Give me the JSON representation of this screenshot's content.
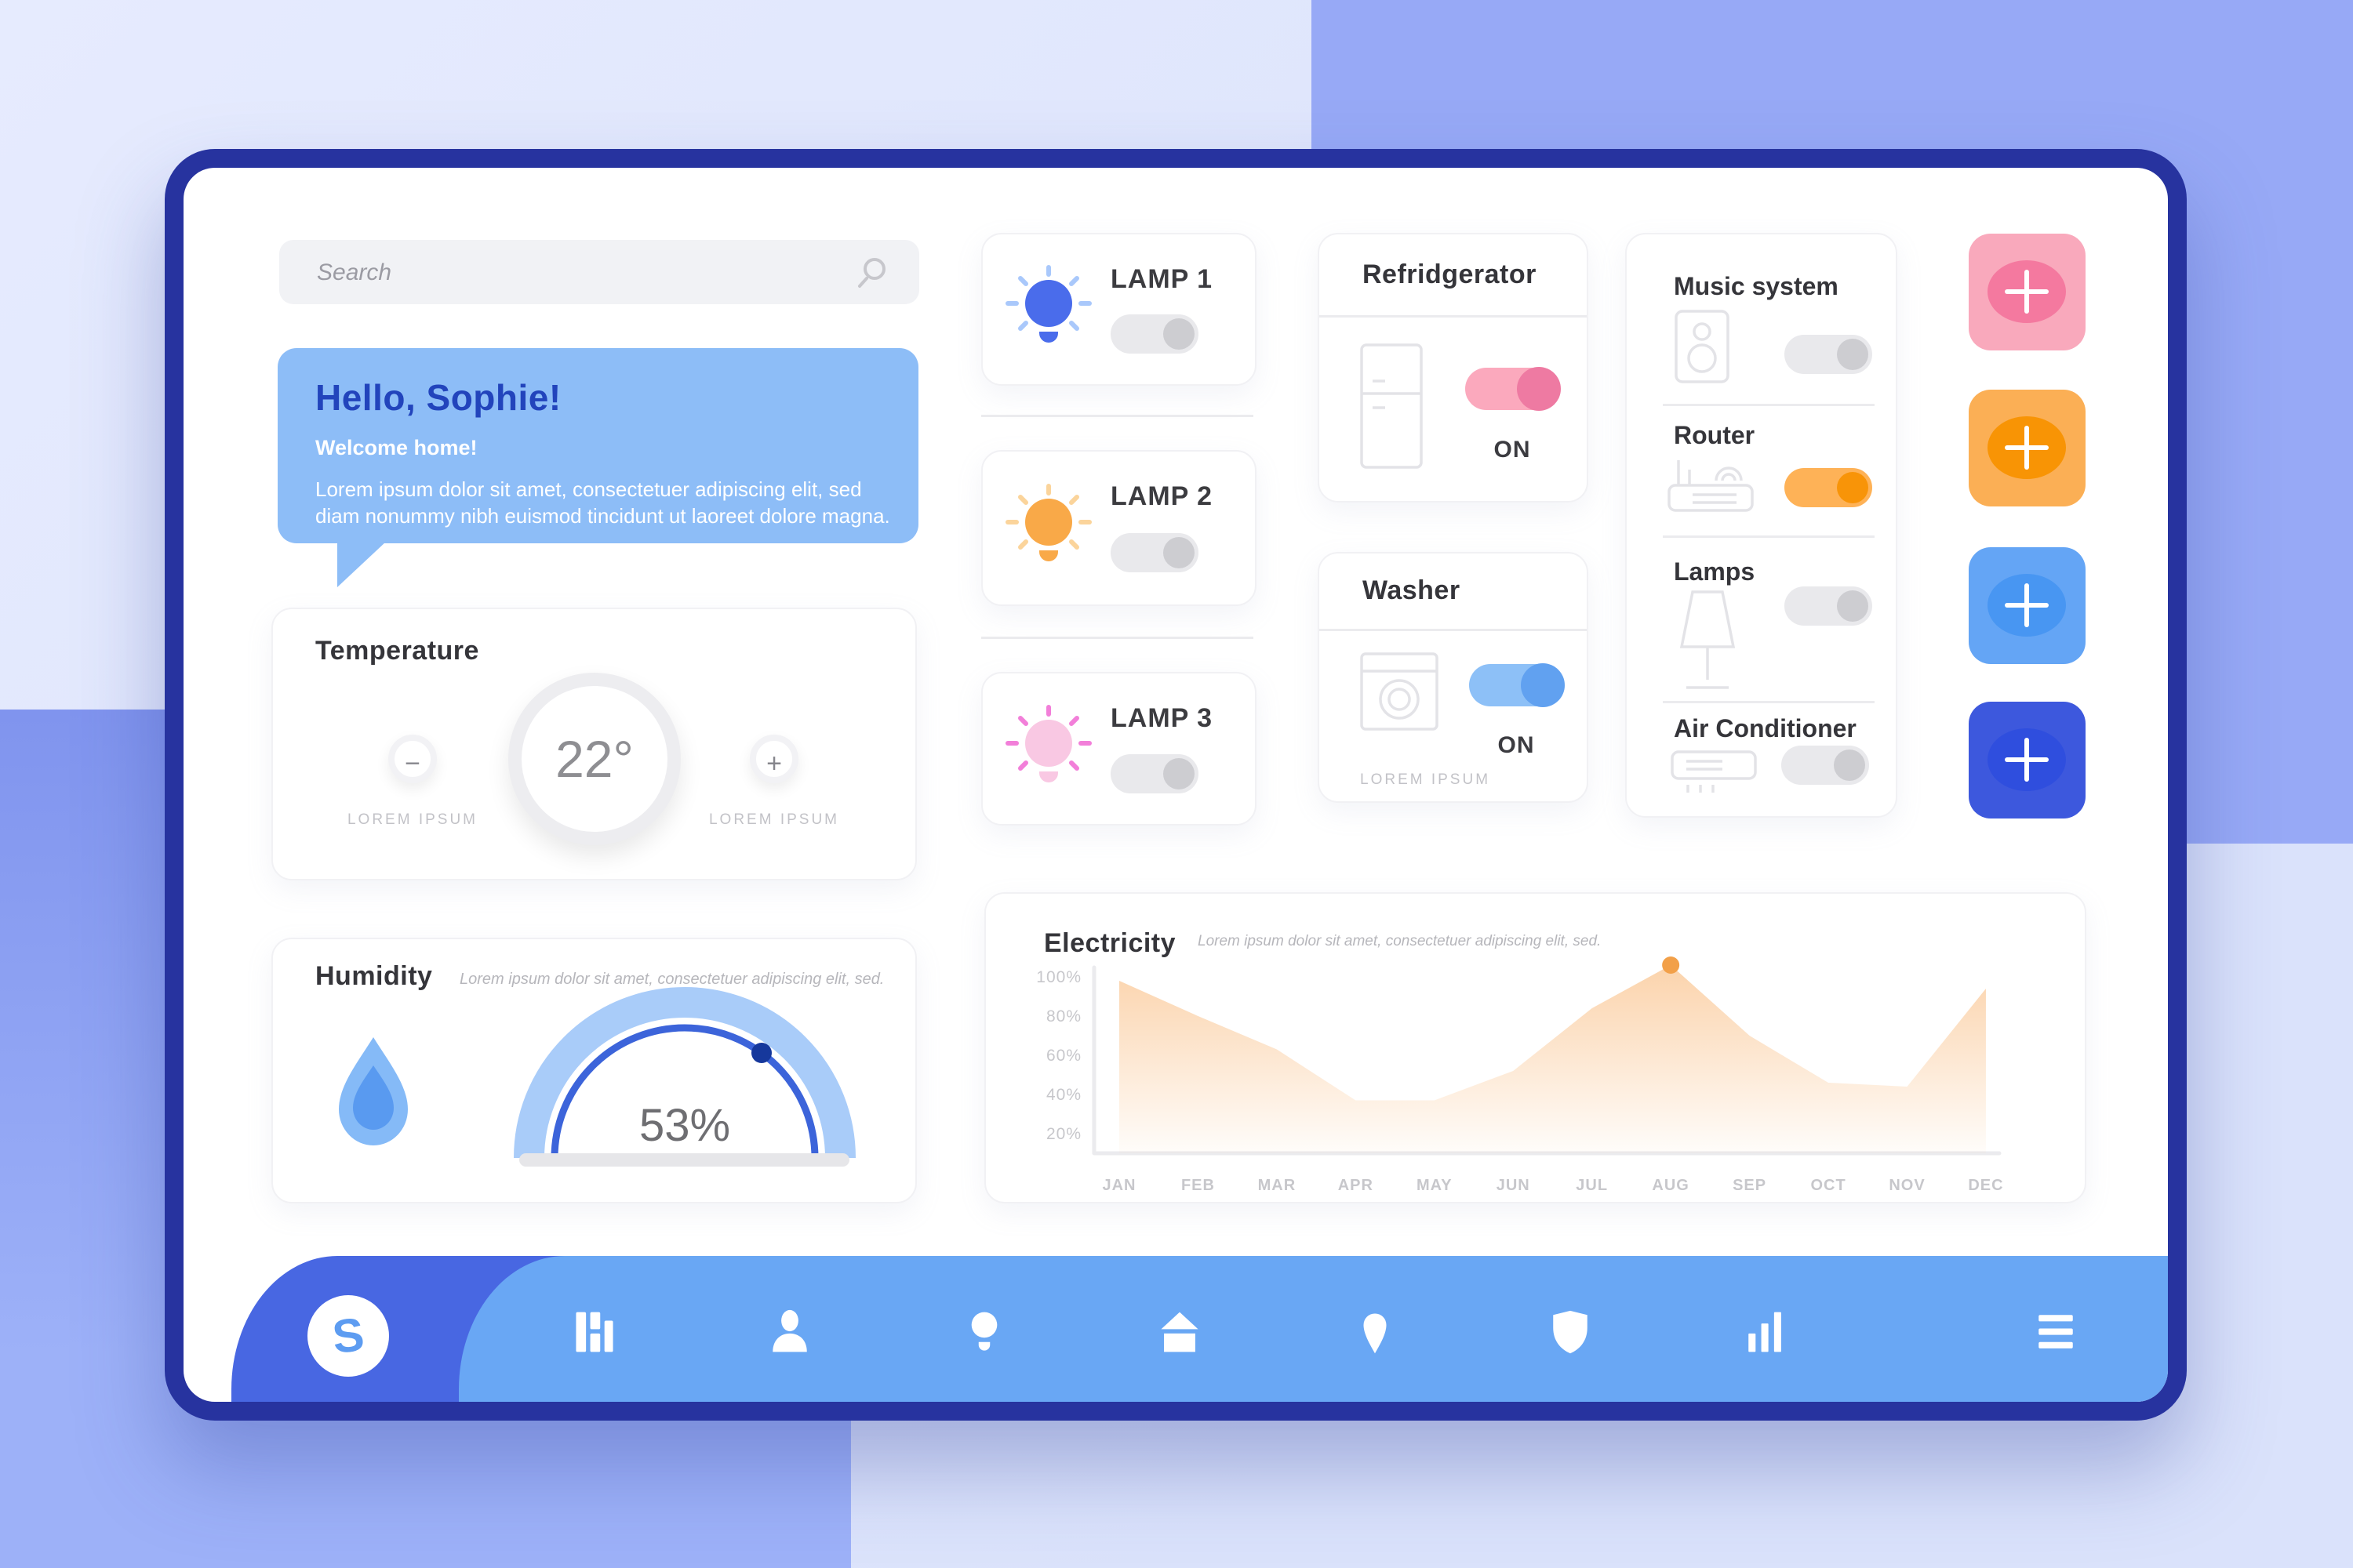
{
  "search": {
    "placeholder": "Search"
  },
  "greeting": {
    "title": "Hello, Sophie!",
    "subtitle": "Welcome home!",
    "body": "Lorem ipsum dolor sit amet, consectetuer adipiscing elit, sed diam nonummy nibh euismod tincidunt ut laoreet dolore magna."
  },
  "temperature": {
    "title": "Temperature",
    "value": "22°",
    "decrease_label": "LOREM IPSUM",
    "increase_label": "LOREM IPSUM",
    "minus_glyph": "−",
    "plus_glyph": "+"
  },
  "humidity": {
    "title": "Humidity",
    "subtitle": "Lorem ipsum dolor sit amet, consectetuer adipiscing elit, sed.",
    "value": "53%",
    "gauge_band_color": "#a9ccf9",
    "gauge_arc_color": "#3c64da",
    "gauge_dot_color": "#16389c"
  },
  "lamps": [
    {
      "label": "LAMP 1",
      "bulb_color": "#4a6ceb",
      "ray_color": "#a9c8fb",
      "state": "off"
    },
    {
      "label": "LAMP 2",
      "bulb_color": "#f9a948",
      "ray_color": "#fbd49b",
      "state": "off"
    },
    {
      "label": "LAMP 3",
      "bulb_color": "#f9c8e3",
      "ray_color": "#f27fd9",
      "state": "off"
    }
  ],
  "refrigerator": {
    "title": "Refridgerator",
    "status": "ON",
    "toggle": {
      "state": "on",
      "track": "#fba9bd",
      "knob": "#ee7aa2"
    }
  },
  "washer": {
    "title": "Washer",
    "status": "ON",
    "footnote": "LOREM IPSUM",
    "toggle": {
      "state": "on",
      "track": "#8dc0f7",
      "knob": "#61a1f0"
    }
  },
  "devices": [
    {
      "label": "Music system",
      "state": "off",
      "track": "",
      "knob": ""
    },
    {
      "label": "Router",
      "state": "on",
      "track": "#feb257",
      "knob": "#f89408"
    },
    {
      "label": "Lamps",
      "state": "off",
      "track": "",
      "knob": ""
    },
    {
      "label": "Air Conditioner",
      "state": "off",
      "track": "",
      "knob": ""
    }
  ],
  "add_buttons": [
    {
      "name": "add-pink",
      "bg": "#f9a9bc",
      "inner": "#f4799f"
    },
    {
      "name": "add-orange",
      "bg": "#fbaf55",
      "inner": "#f89405"
    },
    {
      "name": "add-light-blue",
      "bg": "#64a5f5",
      "inner": "#4896f2"
    },
    {
      "name": "add-dark-blue",
      "bg": "#3d58dd",
      "inner": "#2f4ede"
    }
  ],
  "electricity": {
    "title": "Electricity",
    "subtitle": "Lorem ipsum dolor sit amet, consectetuer adipiscing elit, sed."
  },
  "chart_data": {
    "type": "area",
    "title": "Electricity",
    "x": [
      "JAN",
      "FEB",
      "MAR",
      "APR",
      "MAY",
      "JUN",
      "JUL",
      "AUG",
      "SEP",
      "OCT",
      "NOV",
      "DEC"
    ],
    "series": [
      {
        "name": "electricity_usage_pct",
        "values": [
          98,
          80,
          63,
          37,
          37,
          52,
          84,
          106,
          70,
          46,
          44,
          94
        ]
      }
    ],
    "y_ticks": [
      "100%",
      "80%",
      "60%",
      "40%",
      "20%"
    ],
    "y_tick_values": [
      100,
      80,
      60,
      40,
      20
    ],
    "ylim": [
      0,
      110
    ],
    "grid": false,
    "legend": "none",
    "line_color": "#f2a552",
    "area_color": "#f7a758",
    "marker": {
      "x": "AUG",
      "value": 106,
      "color": "#f2a049"
    }
  },
  "nav": {
    "logo": "S",
    "icons": [
      "dashboard",
      "user",
      "lamp",
      "home",
      "location",
      "shield",
      "stats",
      "menu"
    ]
  }
}
